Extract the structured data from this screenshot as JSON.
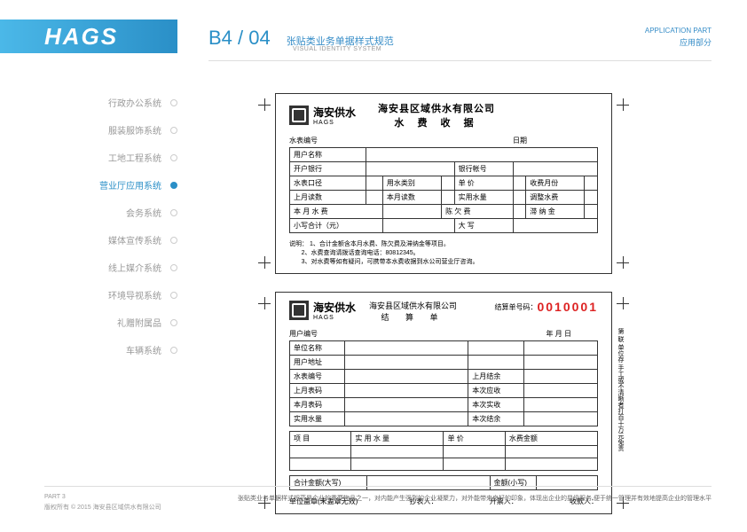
{
  "brand": "HAGS",
  "header": {
    "code": "B4 / 04",
    "title_cn": "张贴类业务单据样式规范",
    "title_en": "VISUAL IDENTITY SYSTEM"
  },
  "app_part": {
    "en": "APPLICATION PART",
    "cn": "应用部分"
  },
  "sidebar": [
    {
      "label": "行政办公系统",
      "active": false
    },
    {
      "label": "服装服饰系统",
      "active": false
    },
    {
      "label": "工地工程系统",
      "active": false
    },
    {
      "label": "营业厅应用系统",
      "active": true
    },
    {
      "label": "会务系统",
      "active": false
    },
    {
      "label": "媒体宣传系统",
      "active": false
    },
    {
      "label": "线上媒介系统",
      "active": false
    },
    {
      "label": "环境导视系统",
      "active": false
    },
    {
      "label": "礼赠附属品",
      "active": false
    },
    {
      "label": "车辆系统",
      "active": false
    }
  ],
  "receipt1": {
    "logo_cn": "海安供水",
    "logo_en": "HAGS",
    "title1": "海安县区域供水有限公司",
    "title2": "水 费 收 据",
    "meta_left": "水表编号",
    "meta_right": "日期",
    "r1c1": "用户名称",
    "r2c1": "开户银行",
    "r2c2": "银行帐号",
    "r3": [
      "水表口径",
      "用水类别",
      "单 价",
      "收费月份"
    ],
    "r4": [
      "上月读数",
      "本月读数",
      "实用水量",
      "调整水费"
    ],
    "r5": [
      "本 月 水 费",
      "陈 欠 费",
      "滞 纳 金"
    ],
    "r6c1": "小写合计（元）",
    "r6c2": "大 写",
    "note_label": "说明：",
    "note1": "1、合计金额含本月水费、陈欠费及滞纳金等项目。",
    "note2": "2、水费查询请拨话查询电话：80812345。",
    "note3": "3、对水费等如有疑问，可携带本水费收据到水公司营业厅咨询。"
  },
  "receipt2": {
    "logo_cn": "海安供水",
    "logo_en": "HAGS",
    "title1": "海安县区域供水有限公司",
    "title2": "结 算 单",
    "serial_label": "结算单号码：",
    "serial_num": "0010001",
    "meta_left": "用户编号",
    "meta_right": "年  月  日",
    "rows_left": [
      "单位名称",
      "用户地址",
      "水表编号",
      "上月表码",
      "本月表码",
      "实用水量"
    ],
    "rows_right": [
      "",
      "",
      "上月结余",
      "本次应收",
      "本次实收",
      "本次结余"
    ],
    "header_row": [
      "项 目",
      "实 用 水 量",
      "单 价",
      "水费金额"
    ],
    "total_row1_l": "合计金额(大写)",
    "total_row1_r": "金额(小写)",
    "sign_row": [
      "单位盖章(未盖章无效)",
      "抄表人：",
      "开票人：",
      "收款人："
    ],
    "vtext": "第  联  单位存  手工或不清晰者打百十万元免责"
  },
  "footer": {
    "part": "PART 3",
    "copyright": "版权所有 © 2015  海安县区域供水有限公司",
    "desc": "张贴类业务单据样式规范是企业的重要物品之一，对内能产生强烈的企业凝聚力，对外能带来良好的印象，体现出企业的星级服务,便于统一管理并有效地提高企业的管理水平"
  },
  "colors": {
    "brand": "#2a8fc7",
    "red": "#d22"
  }
}
